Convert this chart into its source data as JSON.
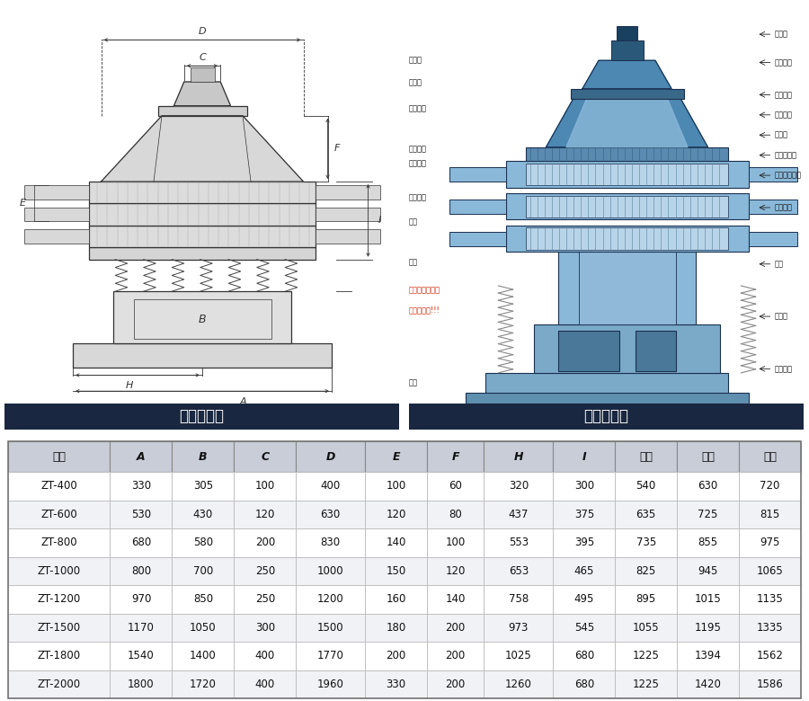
{
  "left_panel_title": "外形尺寸图",
  "right_panel_title": "一般结构图",
  "table_headers": [
    "型号",
    "A",
    "B",
    "C",
    "D",
    "E",
    "F",
    "H",
    "I",
    "一层",
    "二层",
    "三层"
  ],
  "table_data": [
    [
      "ZT-400",
      "330",
      "305",
      "100",
      "400",
      "100",
      "60",
      "320",
      "300",
      "540",
      "630",
      "720"
    ],
    [
      "ZT-600",
      "530",
      "430",
      "120",
      "630",
      "120",
      "80",
      "437",
      "375",
      "635",
      "725",
      "815"
    ],
    [
      "ZT-800",
      "680",
      "580",
      "200",
      "830",
      "140",
      "100",
      "553",
      "395",
      "735",
      "855",
      "975"
    ],
    [
      "ZT-1000",
      "800",
      "700",
      "250",
      "1000",
      "150",
      "120",
      "653",
      "465",
      "825",
      "945",
      "1065"
    ],
    [
      "ZT-1200",
      "970",
      "850",
      "250",
      "1200",
      "160",
      "140",
      "758",
      "495",
      "895",
      "1015",
      "1135"
    ],
    [
      "ZT-1500",
      "1170",
      "1050",
      "300",
      "1500",
      "180",
      "200",
      "973",
      "545",
      "1055",
      "1195",
      "1335"
    ],
    [
      "ZT-1800",
      "1540",
      "1400",
      "400",
      "1770",
      "200",
      "200",
      "1025",
      "680",
      "1225",
      "1394",
      "1562"
    ],
    [
      "ZT-2000",
      "1800",
      "1720",
      "400",
      "1960",
      "330",
      "200",
      "1260",
      "680",
      "1225",
      "1420",
      "1586"
    ]
  ],
  "header_bg": "#c8cdd8",
  "row_bg_odd": "#ffffff",
  "row_bg_even": "#f0f2f5",
  "panel_title_bg": "#1a2740",
  "panel_title_fg": "#ffffff",
  "bg_color": "#ffffff",
  "top_bg": "#f5f5f5",
  "right_bg": "#dce8f0",
  "right_labels": [
    "进料口",
    "辅助筛网",
    "辅助筛网",
    "筛网法兰",
    "橡胶球",
    "球形清洁板",
    "级外重橡褶板",
    "上部重锤",
    "震体",
    "电动机",
    "下部重锤"
  ],
  "left_labels_right": [
    "防尘盖",
    "压紧环",
    "顶部框架",
    "中部框架",
    "底部框架",
    "小尺排料",
    "束环",
    "弹簧",
    "运输用固定耑栓",
    "试机时去掉!!!",
    "底座"
  ]
}
